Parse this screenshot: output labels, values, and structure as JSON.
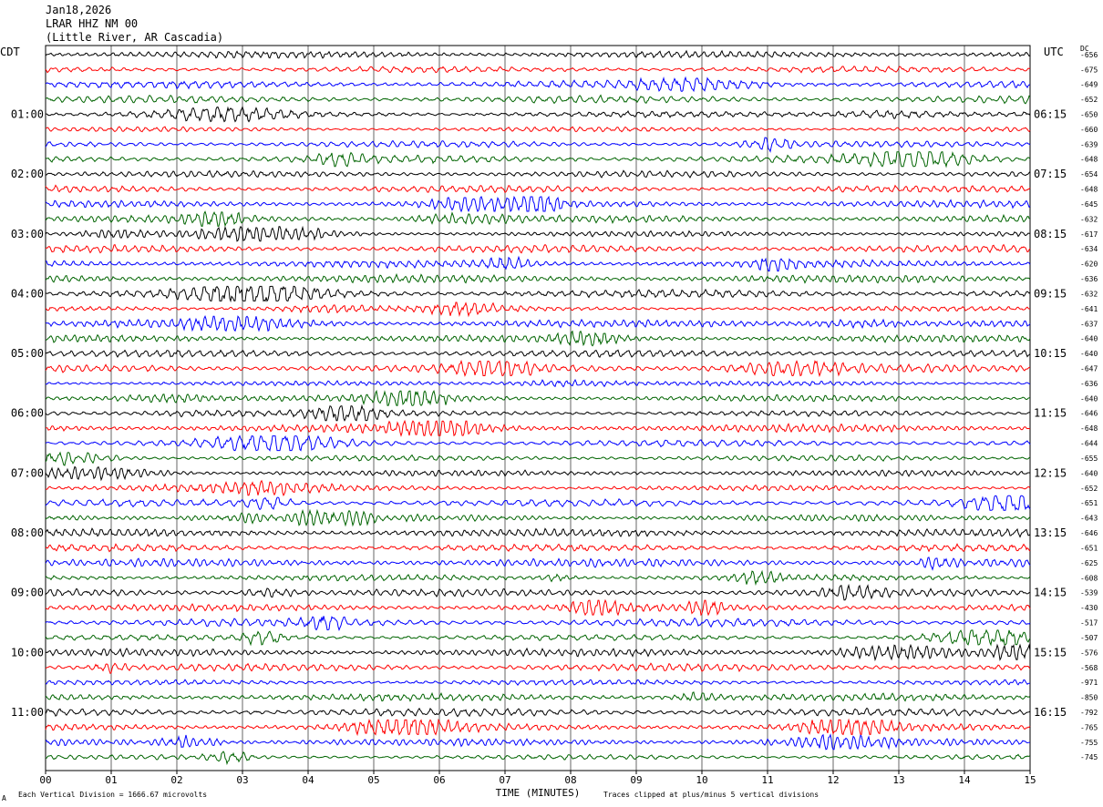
{
  "header": {
    "date": "Jan18,2026",
    "station": "LRAR HHZ NM 00",
    "location": "(Little River, AR Cascadia)"
  },
  "left_tz": "CDT",
  "right_tz": "UTC",
  "dc_label": "DC",
  "footer": {
    "left_mark": "A",
    "scale_note": "Each Vertical Division = 1666.67 microvolts",
    "xlabel": "TIME (MINUTES)",
    "clip_note": "Traces clipped at plus/minus 5 vertical divisions"
  },
  "colors": {
    "cycle": [
      "#000000",
      "#ff0000",
      "#0000ff",
      "#006400"
    ],
    "grid": "#000000"
  },
  "chart_data": {
    "type": "line",
    "title": "",
    "xlabel": "TIME (MINUTES)",
    "x_ticks": [
      "00",
      "01",
      "02",
      "03",
      "04",
      "05",
      "06",
      "07",
      "08",
      "09",
      "10",
      "11",
      "12",
      "13",
      "14",
      "15"
    ],
    "xlim": [
      0,
      15
    ],
    "left_time_labels": [
      "01:00",
      "02:00",
      "03:00",
      "04:00",
      "05:00",
      "06:00",
      "07:00",
      "08:00",
      "09:00",
      "10:00",
      "11:00"
    ],
    "right_time_labels": [
      "06:15",
      "07:15",
      "08:15",
      "09:15",
      "10:15",
      "11:15",
      "12:15",
      "13:15",
      "14:15",
      "15:15",
      "16:15"
    ],
    "dc_offsets": [
      -656,
      -675,
      -649,
      -652,
      -650,
      -660,
      -639,
      -648,
      -654,
      -648,
      -645,
      -632,
      -617,
      -634,
      -620,
      -636,
      -632,
      -641,
      -637,
      -640,
      -640,
      -647,
      -636,
      -640,
      -646,
      -648,
      -644,
      -655,
      -640,
      -652,
      -651,
      -643,
      -646,
      -651,
      -625,
      -608,
      -539,
      -430,
      -517,
      -507,
      -576,
      -568,
      -971,
      -850,
      -792,
      -765,
      -755,
      -745
    ],
    "grid": true,
    "traces_per_hour": 4,
    "trace_interval_minutes": 15
  }
}
